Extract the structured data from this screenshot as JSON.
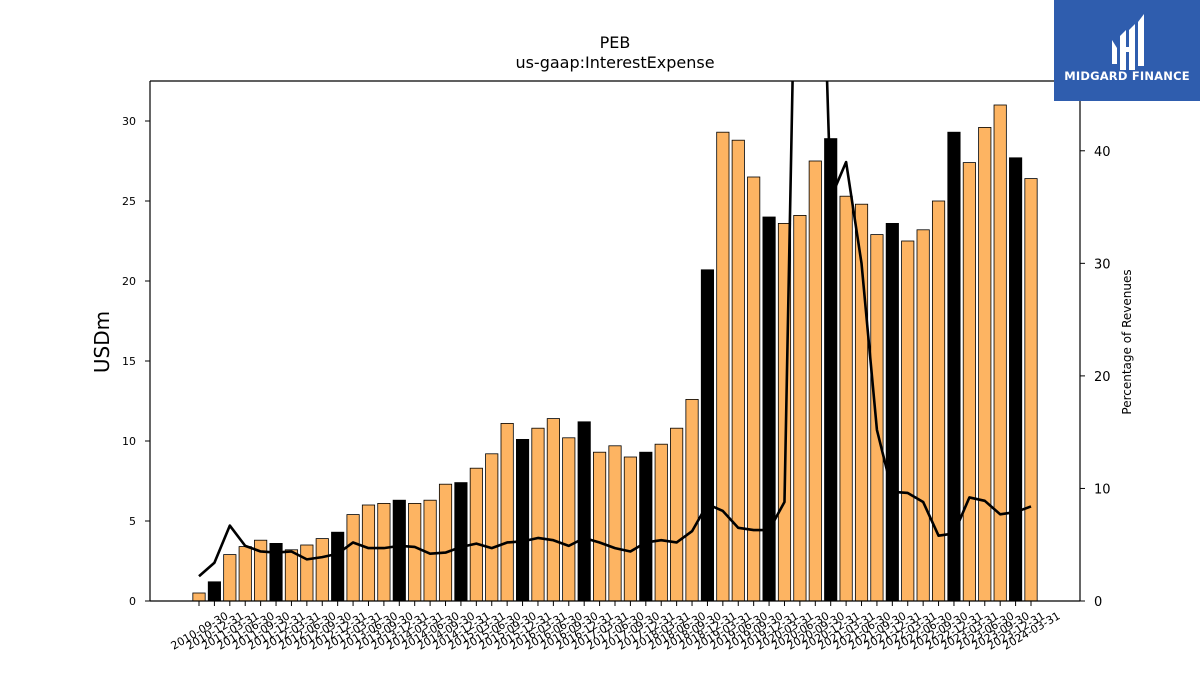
{
  "chart_data": {
    "type": "bar",
    "title": "PEB",
    "subtitle": "us-gaap:InterestExpense",
    "ylabel": "USDm",
    "y2label": "Percentage of Revenues",
    "ylim": [
      0,
      32.5
    ],
    "y2lim": [
      0,
      46.2
    ],
    "yticks": [
      0,
      5,
      10,
      15,
      20,
      25,
      30
    ],
    "y2ticks": [
      0,
      10,
      20,
      30,
      40
    ],
    "bar_colors": {
      "quarter": "#fdb462",
      "year_end": "#000000"
    },
    "line_color": "#000000",
    "x_labels": [
      "2010-09-30",
      "2010-12-31",
      "2011-03-31",
      "2011-06-30",
      "2011-09-30",
      "2011-12-31",
      "2012-03-31",
      "2012-06-30",
      "2012-09-30",
      "2012-12-31",
      "2013-03-31",
      "2013-06-30",
      "2013-09-30",
      "2013-12-31",
      "2014-03-31",
      "2014-06-30",
      "2014-09-30",
      "2014-12-31",
      "2015-03-31",
      "2015-06-30",
      "2015-09-30",
      "2015-12-31",
      "2016-03-31",
      "2016-06-30",
      "2016-09-30",
      "2016-12-31",
      "2017-03-31",
      "2017-06-30",
      "2017-09-30",
      "2017-12-31",
      "2018-03-31",
      "2018-06-30",
      "2018-09-30",
      "2018-12-31",
      "2019-03-31",
      "2019-06-30",
      "2019-09-30",
      "2019-12-31",
      "2020-03-31",
      "2020-06-30",
      "2020-09-30",
      "2020-12-31",
      "2021-03-31",
      "2021-06-30",
      "2021-09-30",
      "2021-12-31",
      "2022-03-31",
      "2022-06-30",
      "2022-09-30",
      "2022-12-31",
      "2023-03-31",
      "2023-06-30",
      "2023-09-30",
      "2023-12-31",
      "2024-03-31"
    ],
    "values": [
      0.5,
      1.2,
      2.9,
      3.4,
      3.8,
      3.6,
      3.2,
      3.5,
      3.9,
      4.3,
      5.4,
      6.0,
      6.1,
      6.3,
      6.1,
      6.3,
      7.3,
      7.4,
      8.3,
      9.2,
      11.1,
      10.1,
      10.8,
      11.4,
      10.2,
      11.2,
      9.3,
      9.7,
      9.0,
      9.3,
      9.8,
      10.8,
      12.6,
      20.7,
      29.3,
      28.8,
      26.5,
      24.0,
      23.6,
      24.1,
      27.5,
      28.9,
      25.3,
      24.8,
      22.9,
      23.6,
      22.5,
      23.2,
      25.0,
      29.3,
      27.4,
      29.6,
      31.0,
      27.7,
      26.4
    ],
    "year_end": [
      false,
      true,
      false,
      false,
      false,
      true,
      false,
      false,
      false,
      true,
      false,
      false,
      false,
      true,
      false,
      false,
      false,
      true,
      false,
      false,
      false,
      true,
      false,
      false,
      false,
      true,
      false,
      false,
      false,
      true,
      false,
      false,
      false,
      true,
      false,
      false,
      false,
      true,
      false,
      false,
      false,
      true,
      false,
      false,
      false,
      true,
      false,
      false,
      false,
      true,
      false,
      false,
      false,
      true,
      false
    ],
    "pct_of_revenues": [
      2.2,
      3.4,
      6.7,
      4.9,
      4.4,
      4.3,
      4.4,
      3.7,
      3.9,
      4.2,
      5.2,
      4.7,
      4.7,
      4.9,
      4.8,
      4.2,
      4.3,
      4.8,
      5.1,
      4.7,
      5.2,
      5.3,
      5.6,
      5.4,
      4.9,
      5.6,
      5.2,
      4.7,
      4.4,
      5.2,
      5.4,
      5.2,
      6.2,
      8.6,
      8.0,
      6.5,
      6.3,
      6.3,
      8.8,
      80.0,
      80.0,
      35.8,
      39.0,
      30.0,
      15.2,
      9.7,
      9.6,
      8.8,
      5.8,
      6.0,
      9.2,
      8.9,
      7.7,
      7.9,
      8.4
    ]
  },
  "logo": {
    "text": "MIDGARD FINANCE"
  }
}
